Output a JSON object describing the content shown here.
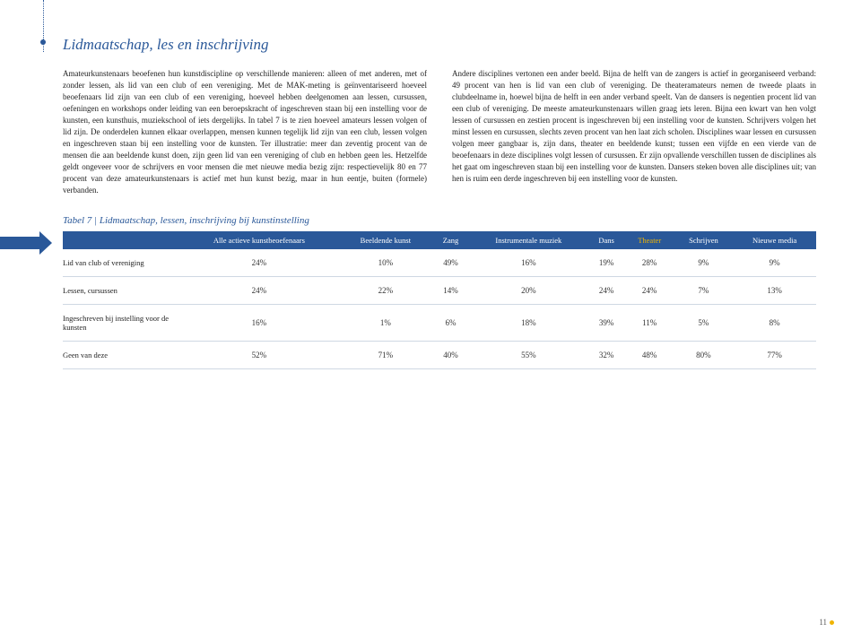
{
  "heading": "Lidmaatschap, les en inschrijving",
  "col1": "Amateurkunstenaars beoefenen hun kunstdiscipline op verschillende manieren: alleen of met anderen, met of zonder lessen, als lid van een club of een vereniging. Met de MAK-meting is geïnventariseerd hoeveel beoefenaars lid zijn van een club of een vereniging, hoeveel hebben deelgenomen aan lessen, cursussen, oefeningen en workshops onder leiding van een beroepskracht of ingeschreven staan bij een instelling voor de kunsten, een kunsthuis, muziekschool of iets dergelijks. In tabel 7 is te zien hoeveel amateurs lessen volgen of lid zijn. De onderdelen kunnen elkaar overlappen, mensen kunnen tegelijk lid zijn van een club, lessen volgen en ingeschreven staan bij een instelling voor de kunsten. Ter illustratie: meer dan zeventig procent van de mensen die aan beeldende kunst doen, zijn geen lid van een vereniging of club en hebben geen les. Hetzelfde geldt ongeveer voor de schrijvers en voor mensen die met nieuwe media bezig zijn: respectievelijk 80 en 77 procent van deze amateurkunstenaars is actief met hun kunst bezig, maar in hun eentje, buiten (formele) verbanden.",
  "col2": "Andere disciplines vertonen een ander beeld. Bijna de helft van de zangers is actief in georganiseerd verband: 49 procent van hen is lid van een club of vereniging. De theateramateurs nemen de tweede plaats in clubdeelname in, hoewel bijna de helft in een ander verband speelt. Van de dansers is negentien procent lid van een club of vereniging. De meeste amateurkunstenaars willen graag iets leren. Bijna een kwart van hen volgt lessen of cursussen en zestien procent is ingeschreven bij een instelling voor de kunsten. Schrijvers volgen het minst lessen en cursussen, slechts zeven procent van hen laat zich scholen. Disciplines waar lessen en cursussen volgen meer gangbaar is, zijn dans, theater en beeldende kunst; tussen een vijfde en een vierde van de beoefenaars in deze disciplines volgt lessen of cursussen. Er zijn opvallende verschillen tussen de disciplines als het gaat om ingeschreven staan bij een instelling voor de kunsten. Dansers steken boven alle disciplines uit; van hen is ruim een derde ingeschreven bij een instelling voor de kunsten.",
  "tableCaption": "Tabel 7 | Lidmaatschap, lessen, inschrijving bij kunstinstelling",
  "headers": [
    "",
    "Alle actieve kunstbeoefenaars",
    "Beeldende kunst",
    "Zang",
    "Instrumentale muziek",
    "Dans",
    "Theater",
    "Schrijven",
    "Nieuwe media"
  ],
  "rows": [
    [
      "Lid van club of vereniging",
      "24%",
      "10%",
      "49%",
      "16%",
      "19%",
      "28%",
      "9%",
      "9%"
    ],
    [
      "Lessen, cursussen",
      "24%",
      "22%",
      "14%",
      "20%",
      "24%",
      "24%",
      "7%",
      "13%"
    ],
    [
      "Ingeschreven bij instelling voor de kunsten",
      "16%",
      "1%",
      "6%",
      "18%",
      "39%",
      "11%",
      "5%",
      "8%"
    ],
    [
      "Geen van deze",
      "52%",
      "71%",
      "40%",
      "55%",
      "32%",
      "48%",
      "80%",
      "77%"
    ]
  ],
  "yellowHeaderIndex": 6,
  "pageNum": "11"
}
